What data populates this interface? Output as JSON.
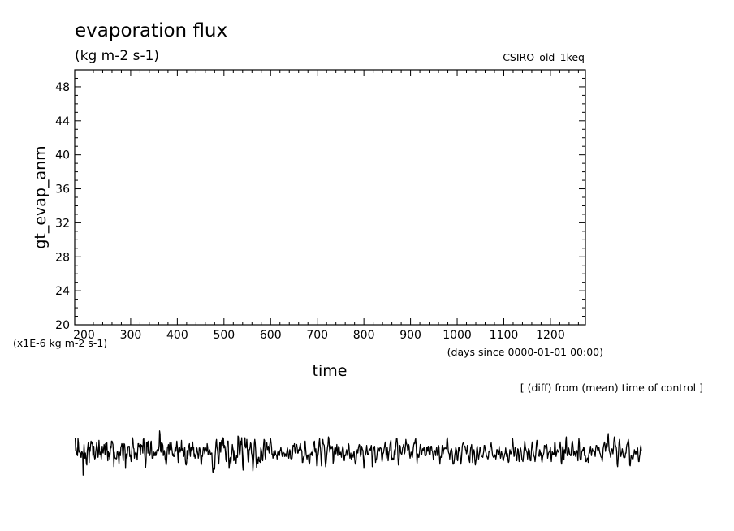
{
  "chart_data": {
    "type": "line",
    "title": "evaporation flux",
    "subtitle": "(kg m-2 s-1)",
    "experiment": "CSIRO_old_1keq",
    "xlabel": "time",
    "x_units": "(days since 0000-01-01 00:00)",
    "ylabel": "gt_evap_anm",
    "y_units": "(x1E-6 kg m-2 s-1)",
    "note": "[ (diff) from (mean) time of control ]",
    "xlim": [
      180,
      1275
    ],
    "ylim": [
      20,
      50
    ],
    "x_ticks": [
      200,
      300,
      400,
      500,
      600,
      700,
      800,
      900,
      1000,
      1100,
      1200
    ],
    "y_ticks": [
      20,
      24,
      28,
      32,
      36,
      40,
      44,
      48
    ],
    "grid": false,
    "series": [
      {
        "x_start": 181,
        "x_step": 1,
        "values": [
          6.7,
          5.2,
          5.5,
          5.0,
          4.7,
          4.6,
          6.6,
          6.1,
          5.0,
          5.1,
          5.2,
          4.4,
          4.9,
          4.4,
          5.1,
          5.0,
          4.8,
          2.3,
          4.6,
          5.9,
          4.9,
          4.3,
          4.9,
          4.4,
          3.7,
          3.5,
          5.2,
          5.6,
          6.1,
          5.0,
          3.8,
          5.6,
          5.1,
          5.8,
          6.3,
          6.1,
          6.0,
          6.2,
          4.6,
          4.7,
          5.7,
          4.5,
          4.2,
          4.3,
          5.0,
          5.4,
          6.1,
          5.7,
          5.2,
          4.4,
          4.9,
          6.4,
          5.4,
          4.7,
          5.0,
          4.7,
          4.2,
          4.9,
          5.7,
          5.0,
          4.9,
          5.4,
          5.9,
          5.6,
          4.7,
          6.0,
          5.7,
          5.3,
          6.1,
          4.9,
          4.0,
          5.1,
          4.5,
          4.9,
          4.2,
          4.9,
          5.7,
          5.5,
          6.3,
          6.3,
          6.1,
          5.9,
          4.9,
          3.3,
          5.0,
          4.4,
          4.3,
          4.3,
          4.2,
          4.3,
          5.0,
          5.1,
          4.8,
          4.3,
          3.6,
          5.0,
          4.7,
          4.6,
          5.6,
          5.7,
          6.0,
          5.9,
          4.7,
          4.0,
          5.5,
          6.0,
          5.9,
          5.2,
          3.1,
          4.7,
          4.8,
          4.3,
          4.9,
          5.6,
          5.7,
          5.6,
          5.7,
          4.5,
          4.7,
          4.4,
          3.9,
          4.8,
          5.8,
          6.7,
          6.4,
          5.5,
          5.4,
          4.3,
          4.7,
          4.9,
          5.0,
          4.9,
          4.7,
          4.1,
          5.2,
          6.0,
          6.0,
          5.6,
          5.8,
          5.5,
          4.7,
          5.9,
          5.7,
          5.8,
          5.6,
          4.9,
          6.5,
          6.6,
          5.7,
          4.8,
          4.0,
          3.2,
          4.0,
          6.1,
          5.7,
          6.2,
          4.9,
          6.3,
          5.5,
          4.7,
          4.6,
          4.9,
          6.0,
          6.3,
          5.2,
          4.3,
          4.3,
          4.3,
          5.1,
          4.6,
          4.9,
          4.6,
          5.0,
          4.6,
          4.8,
          5.2,
          5.3,
          5.3,
          5.1,
          5.3,
          5.8,
          7.5,
          7.1,
          5.2,
          5.0,
          6.1,
          6.1,
          6.0,
          5.8,
          4.6,
          4.8,
          5.2,
          4.9,
          4.2,
          4.0,
          3.5,
          3.8,
          4.9,
          5.6,
          5.6,
          5.9,
          4.8,
          5.6,
          6.1,
          5.3,
          5.7,
          6.1,
          5.5,
          5.1,
          4.6,
          4.8,
          4.5,
          4.5,
          4.5,
          5.4,
          5.6,
          5.1,
          5.7,
          6.3,
          5.7,
          4.6,
          3.8,
          5.4,
          5.6,
          5.6,
          5.0,
          5.2,
          5.4,
          6.4,
          5.2,
          5.4,
          5.4,
          4.6,
          4.5,
          5.3,
          5.6,
          4.2,
          3.6,
          3.5,
          3.8,
          5.2,
          4.3,
          4.6,
          5.5,
          5.8,
          6.0,
          5.0,
          4.5,
          5.5,
          5.6,
          5.1,
          5.9,
          6.2,
          5.3,
          5.6,
          4.5,
          4.8,
          4.3,
          4.6,
          4.6,
          5.1,
          5.5,
          5.1,
          4.8,
          4.3,
          4.6,
          5.5,
          5.5,
          5.2,
          4.5,
          3.5,
          3.7,
          4.6,
          4.5,
          5.2,
          5.6,
          5.5,
          5.1,
          4.8,
          5.6,
          5.4,
          5.3,
          5.1,
          6.0,
          5.6,
          4.7,
          5.1,
          4.9,
          5.3,
          5.2,
          4.7,
          4.8,
          4.9,
          4.9,
          3.7,
          2.7,
          2.6,
          3.1,
          3.3,
          3.0,
          4.5,
          5.3,
          6.2,
          6.5,
          5.6,
          5.3,
          4.7,
          3.6,
          3.7,
          4.8,
          6.1,
          6.1,
          5.0,
          6.0,
          6.4,
          6.0,
          5.8,
          6.7,
          6.6,
          5.5,
          5.8,
          5.7,
          5.1,
          4.2,
          3.9,
          5.3,
          6.1,
          6.3,
          6.3,
          4.4,
          3.1,
          3.6,
          4.3,
          4.4,
          3.7,
          4.6,
          5.0,
          5.9,
          5.5,
          5.2,
          4.0,
          4.1,
          5.2,
          4.4,
          4.3,
          3.7,
          4.6,
          4.4,
          4.4,
          6.9,
          6.8,
          5.9,
          4.9,
          4.6,
          5.2,
          6.3,
          5.9,
          6.7,
          5.6,
          3.5,
          2.9,
          4.3,
          5.5,
          6.1,
          6.7,
          5.7,
          5.5,
          5.8,
          6.5,
          5.5,
          4.6,
          3.8,
          3.9,
          5.3,
          5.3,
          5.6,
          6.1,
          6.0,
          4.9,
          4.7,
          4.1,
          2.8,
          3.7,
          4.5,
          6.0,
          6.5,
          6.1,
          5.2,
          4.0,
          3.2,
          3.7,
          4.2,
          3.7,
          4.4,
          4.4,
          3.9,
          4.0,
          3.8,
          5.5,
          5.3,
          5.0,
          4.2,
          4.0,
          4.9,
          5.9,
          6.5,
          6.4,
          4.6,
          4.2,
          5.4,
          6.0,
          6.1,
          5.3,
          5.4,
          5.7,
          5.2,
          4.9,
          5.8,
          6.2,
          6.6,
          6.1,
          5.6,
          4.7,
          4.8,
          4.3,
          4.5,
          5.1,
          4.6,
          4.6,
          5.2,
          4.7,
          4.7,
          4.6,
          4.2,
          4.9,
          5.1,
          5.1,
          4.7,
          4.6,
          5.2,
          5.2,
          5.6,
          5.2,
          4.8,
          4.5,
          4.9,
          5.0,
          4.9,
          4.9,
          4.5,
          4.8,
          4.8,
          4.5,
          4.8,
          5.1,
          5.5,
          5.2,
          4.6,
          4.3,
          4.7,
          5.3,
          5.1,
          4.3,
          4.2,
          4.2,
          4.3,
          4.8,
          5.8,
          5.8,
          5.7,
          6.0,
          5.1,
          4.9,
          5.5,
          5.9,
          5.9,
          5.5,
          4.9,
          4.9,
          5.3,
          5.2,
          5.5,
          5.8,
          6.0,
          5.3,
          5.3,
          5.1,
          3.8,
          3.8,
          4.3,
          4.5,
          4.5,
          5.7,
          6.3,
          5.5,
          4.8,
          4.5,
          4.2,
          4.6,
          4.7,
          4.5,
          3.9,
          3.6,
          3.8,
          4.8,
          4.7,
          4.9,
          5.0,
          4.6,
          4.8,
          5.3,
          5.9,
          6.1,
          6.3,
          5.1,
          5.0,
          5.4,
          4.4,
          3.4,
          3.4,
          4.5,
          4.8,
          5.3,
          6.2,
          6.6,
          5.8,
          5.4,
          4.3,
          3.4,
          4.9,
          6.2,
          6.5,
          6.0,
          5.9,
          5.8,
          4.9,
          3.9,
          3.3,
          3.8,
          4.4,
          5.0,
          5.6,
          5.9,
          6.8,
          6.6,
          5.6,
          5.0,
          5.8,
          5.6,
          5.4,
          5.5,
          5.7,
          5.4,
          3.7,
          4.0,
          5.0,
          5.3,
          5.6,
          5.5,
          4.8,
          5.3,
          5.9,
          5.2,
          4.6,
          5.4,
          5.7,
          5.6,
          4.7,
          4.7,
          5.0,
          4.7,
          4.4,
          5.0,
          5.4,
          5.7,
          5.3,
          4.4,
          4.0,
          4.6,
          4.7,
          4.6,
          5.0,
          5.3,
          5.0,
          4.6,
          5.3,
          6.0,
          5.8,
          4.8,
          4.3,
          4.6,
          4.9,
          4.2,
          4.6,
          4.7,
          4.7,
          4.4,
          4.9,
          5.1,
          4.4,
          3.8,
          3.6,
          3.8,
          4.5,
          5.1,
          5.3,
          4.9,
          5.4,
          5.7,
          5.9,
          5.8,
          4.9,
          4.5,
          4.7,
          5.7,
          5.5,
          5.3,
          5.2,
          4.1,
          3.1,
          3.9,
          4.5,
          4.7,
          4.8,
          5.3,
          5.8,
          5.2,
          4.7,
          4.8,
          4.7,
          5.3,
          5.4,
          5.3,
          5.2,
          5.6,
          5.8,
          5.0,
          3.3,
          3.6,
          5.0,
          5.4,
          5.6,
          5.7,
          4.7,
          3.8,
          4.2,
          4.2,
          4.6,
          5.2,
          5.6,
          5.4,
          5.4,
          5.1,
          5.4,
          5.6,
          5.5,
          5.4,
          4.5,
          3.9,
          4.3,
          4.9,
          4.9,
          5.3,
          5.6,
          6.0,
          6.2,
          5.4,
          4.3,
          4.8,
          5.6,
          5.0,
          4.0,
          4.6,
          5.1,
          5.2,
          5.9,
          6.2,
          6.4,
          4.8,
          4.1,
          4.1,
          4.3,
          4.1,
          4.2,
          5.0,
          5.3,
          4.7,
          5.5,
          6.1,
          6.6,
          6.6,
          6.0,
          4.4,
          3.5,
          3.8,
          4.6,
          5.8,
          5.7,
          4.9,
          4.9,
          4.7,
          5.0,
          5.5,
          5.6,
          5.9,
          5.6,
          4.8,
          5.0,
          5.7,
          6.5,
          6.1,
          5.9,
          5.7,
          5.2,
          5.3,
          5.9,
          5.7,
          4.7,
          4.3,
          4.6,
          5.0,
          5.0,
          4.5,
          4.4,
          4.9,
          5.5,
          5.9,
          6.1,
          6.0,
          6.4,
          6.6,
          5.9,
          4.7,
          3.7,
          4.6,
          4.8,
          4.4,
          4.4,
          4.8,
          5.4,
          5.9,
          5.9,
          4.9,
          4.7,
          5.2,
          5.4,
          5.2,
          5.4,
          5.6,
          5.1,
          4.6,
          4.6,
          4.6,
          4.8,
          5.6,
          5.6,
          5.1,
          5.7,
          5.5,
          4.8,
          4.7,
          4.7,
          5.4,
          5.7,
          5.7,
          5.2,
          5.1,
          4.7,
          4.1,
          4.5,
          5.2,
          5.2,
          5.1,
          4.6,
          5.2,
          5.6,
          5.2,
          4.6,
          4.6,
          5.8,
          5.6,
          4.5,
          3.6,
          4.3,
          4.5,
          4.4,
          5.0,
          5.8,
          5.6,
          4.8,
          5.2,
          5.5,
          5.4,
          5.5,
          5.5,
          5.4,
          5.5,
          6.5,
          6.7,
          6.0,
          5.1,
          4.9,
          4.8,
          4.2,
          4.7,
          5.2,
          5.3,
          5.4,
          5.1,
          4.5,
          3.6,
          3.6,
          3.7,
          4.1,
          4.7,
          5.0,
          5.6,
          5.3,
          5.2,
          4.2,
          4.0,
          4.5,
          5.5,
          5.6,
          5.2,
          5.0,
          4.3,
          3.6,
          4.0,
          4.9,
          5.7,
          6.0,
          6.1,
          6.0,
          5.8,
          5.6,
          5.7,
          5.3,
          5.2,
          4.8,
          5.3,
          5.8,
          5.0,
          4.6,
          4.5,
          4.0,
          3.8,
          4.9,
          5.5,
          5.6,
          5.9,
          4.9,
          3.8,
          4.5,
          5.0,
          5.3,
          5.0,
          4.0,
          3.5,
          3.9,
          4.3,
          5.4,
          5.7,
          5.2,
          4.5,
          4.2,
          4.6,
          5.0,
          5.6,
          5.4,
          4.9,
          4.5,
          4.5,
          4.5,
          4.4,
          4.8,
          5.1,
          5.8,
          5.8,
          5.4,
          5.1,
          4.9,
          4.5,
          4.5,
          4.3,
          4.2,
          4.4,
          5.1,
          5.1,
          5.0,
          5.6,
          5.8,
          6.1,
          5.6,
          5.1,
          4.6,
          4.5,
          4.4,
          4.4,
          4.5,
          4.7,
          4.5,
          4.2,
          4.5,
          5.3,
          5.3,
          5.1,
          4.7,
          5.0,
          5.7,
          5.2,
          4.8,
          4.3,
          4.5,
          5.1,
          4.8,
          4.8,
          4.2,
          4.0,
          4.3,
          4.5,
          4.8,
          4.9,
          5.5,
          5.0,
          4.5,
          4.9,
          4.8,
          4.1,
          3.8,
          3.9,
          4.6,
          5.3,
          5.1,
          4.8,
          4.9,
          5.1,
          5.8,
          6.6,
          6.0,
          5.1,
          4.5,
          4.6,
          5.5,
          5.6,
          5.0,
          4.4,
          4.0,
          4.8,
          5.4,
          5.3,
          4.4,
          3.9,
          4.6,
          5.2,
          5.5,
          5.2,
          4.7,
          4.1,
          4.1,
          3.9,
          4.4,
          5.0,
          5.6,
          6.3,
          5.7,
          5.4,
          5.2,
          5.1,
          4.9,
          4.2,
          4.8,
          5.4,
          5.3,
          5.2,
          4.4,
          4.0,
          4.0,
          4.9,
          5.8,
          6.2,
          5.6,
          5.1,
          4.7,
          4.5,
          4.4,
          3.9,
          4.4,
          5.1,
          6.0,
          6.4,
          6.1,
          5.4,
          4.6,
          4.6,
          4.5,
          5.3,
          5.1,
          4.6,
          4.9,
          4.2,
          3.8,
          4.3,
          4.6,
          4.7,
          5.0,
          5.8,
          5.8,
          5.7,
          5.4,
          5.6,
          5.9,
          5.3,
          4.3,
          4.6,
          4.9,
          5.0,
          5.1,
          5.2,
          5.6,
          4.5,
          3.9,
          4.7,
          5.1,
          4.7,
          4.9,
          4.7,
          4.8,
          6.1,
          6.1,
          5.0,
          4.5,
          4.8,
          5.1,
          5.3,
          5.1,
          5.0,
          5.1,
          5.4,
          5.6,
          6.2,
          5.6,
          3.9,
          3.6,
          4.2,
          5.5,
          5.7,
          4.6,
          4.1,
          5.3,
          5.2,
          4.9,
          6.3,
          6.8,
          5.3,
          4.6,
          4.7,
          4.8,
          5.5,
          5.3,
          4.8,
          4.7,
          4.6,
          4.6,
          5.3,
          6.0,
          6.3,
          5.9,
          5.3,
          4.6,
          5.0,
          5.1,
          4.8,
          4.5,
          4.9,
          5.0,
          5.2,
          4.7,
          4.0,
          5.7,
          6.6,
          6.1,
          4.5,
          4.1,
          4.1,
          4.2,
          5.0,
          5.1,
          5.3,
          5.2,
          5.6,
          5.5,
          4.6,
          4.7,
          4.5,
          3.9,
          3.9,
          4.1,
          4.3,
          4.3,
          3.8,
          4.6,
          5.0,
          4.9,
          5.3,
          5.7,
          5.1,
          4.6,
          5.1,
          5.4,
          5.1,
          5.2,
          5.1,
          5.1,
          4.8,
          4.5,
          5.4,
          5.8,
          5.8,
          5.6,
          5.3,
          5.1,
          5.5,
          5.6,
          5.2,
          4.9,
          4.8,
          4.5,
          4.4,
          4.4,
          3.9,
          4.4,
          5.4,
          5.7,
          6.0,
          6.2,
          5.8,
          5.1,
          5.6,
          6.0,
          5.5,
          5.8,
          6.7,
          7.2,
          6.0,
          5.2,
          5.0,
          4.8,
          4.4,
          4.8,
          5.2,
          5.4,
          5.2,
          4.8,
          5.4,
          6.3,
          6.8,
          6.7,
          5.9,
          5.7,
          5.6,
          5.1,
          3.6,
          3.3,
          4.1,
          5.0,
          6.1,
          6.5,
          5.9,
          5.1,
          4.5,
          4.8,
          5.0,
          5.4,
          5.1,
          4.6,
          4.4,
          4.3,
          4.5,
          4.4,
          4.9,
          4.9,
          5.6,
          5.9,
          6.0,
          6.2,
          6.5,
          6.1,
          5.3,
          3.5,
          3.4,
          4.1,
          4.6,
          4.6,
          4.3,
          4.2,
          4.2,
          4.5,
          4.8,
          5.3,
          5.1,
          4.8,
          5.1,
          5.0,
          4.7,
          5.4,
          5.5,
          4.5,
          3.9,
          3.9,
          4.5,
          4.8,
          5.5,
          5.8,
          5.1
        ]
      }
    ]
  }
}
